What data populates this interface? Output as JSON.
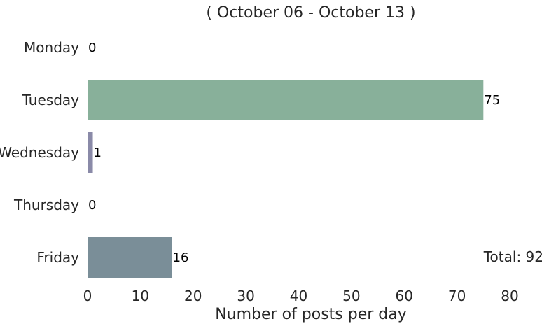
{
  "chart_data": {
    "type": "bar",
    "orientation": "horizontal",
    "title": "( October 06 - October 13 )",
    "xlabel": "Number of posts per day",
    "ylabel": "",
    "categories": [
      "Monday",
      "Tuesday",
      "Wednesday",
      "Thursday",
      "Friday"
    ],
    "values": [
      0,
      75,
      1,
      0,
      16
    ],
    "data_labels": [
      "0",
      "75",
      "1",
      "0",
      "16"
    ],
    "bar_colors": [
      "#8fa8a0",
      "#88b09a",
      "#8a8aa8",
      "#8fa0a8",
      "#7a8e98"
    ],
    "xlim": [
      0,
      80
    ],
    "xticks": [
      0,
      10,
      20,
      30,
      40,
      50,
      60,
      70,
      80
    ],
    "grid": false,
    "total_label": "Total: 92"
  }
}
